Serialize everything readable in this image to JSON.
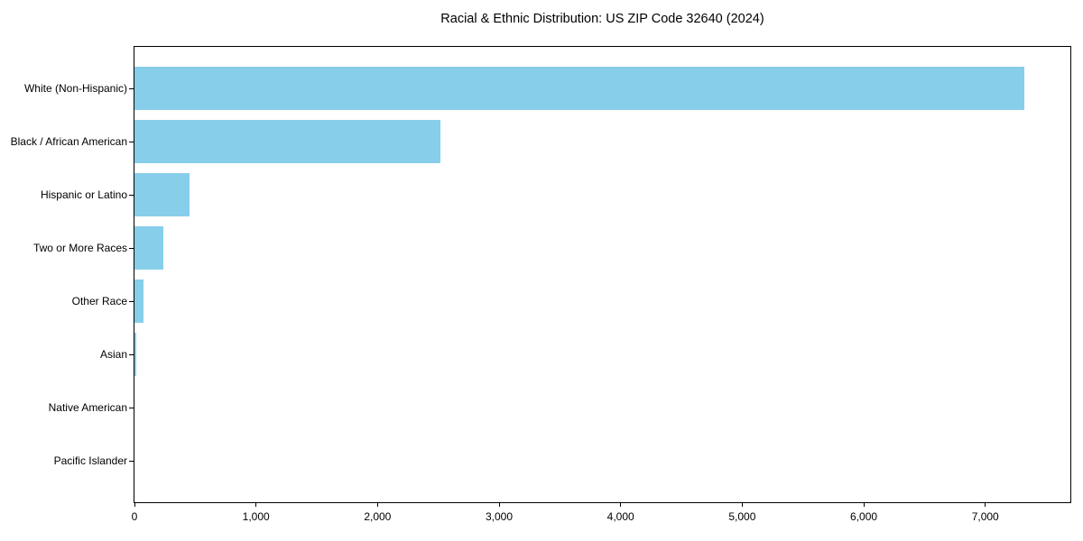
{
  "chart_data": {
    "type": "bar",
    "orientation": "horizontal",
    "title": "Racial & Ethnic Distribution: US ZIP Code 32640 (2024)",
    "categories": [
      "White (Non-Hispanic)",
      "Black / African American",
      "Hispanic or Latino",
      "Two or More Races",
      "Other Race",
      "Asian",
      "Native American",
      "Pacific Islander"
    ],
    "values": [
      7320,
      2520,
      450,
      235,
      75,
      12,
      0,
      0
    ],
    "xlabel": "",
    "ylabel": "",
    "xlim": [
      0,
      7700
    ],
    "xticks": [
      0,
      1000,
      2000,
      3000,
      4000,
      5000,
      6000,
      7000
    ],
    "xtick_labels": [
      "0",
      "1,000",
      "2,000",
      "3,000",
      "4,000",
      "5,000",
      "6,000",
      "7,000"
    ],
    "grid": false,
    "legend": false,
    "colors": {
      "bar": "#87CEEB",
      "text": "#000000",
      "spine": "#000000",
      "background": "#FFFFFF"
    }
  }
}
